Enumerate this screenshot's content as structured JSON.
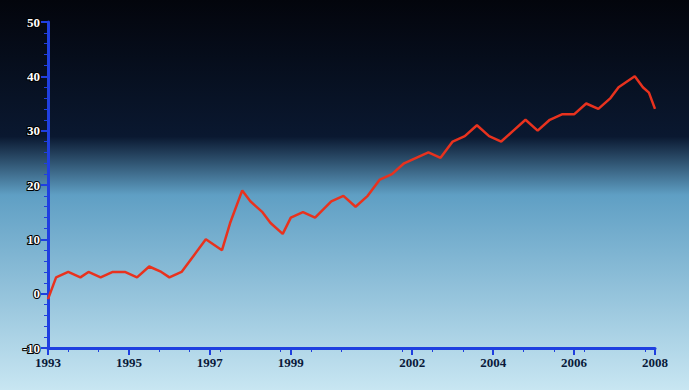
{
  "chart_data": {
    "type": "line",
    "x": [
      1993.0,
      1993.2,
      1993.5,
      1993.8,
      1994.0,
      1994.3,
      1994.6,
      1994.9,
      1995.2,
      1995.5,
      1995.8,
      1996.0,
      1996.3,
      1996.6,
      1996.9,
      1997.1,
      1997.3,
      1997.5,
      1997.8,
      1998.0,
      1998.3,
      1998.5,
      1998.8,
      1999.0,
      1999.3,
      1999.6,
      2000.0,
      2000.3,
      2000.6,
      2000.9,
      2001.2,
      2001.5,
      2001.8,
      2002.1,
      2002.4,
      2002.7,
      2003.0,
      2003.3,
      2003.6,
      2003.9,
      2004.2,
      2004.5,
      2004.8,
      2005.1,
      2005.4,
      2005.7,
      2006.0,
      2006.3,
      2006.6,
      2006.9,
      2007.1,
      2007.3,
      2007.5,
      2007.7,
      2007.85,
      2008.0
    ],
    "values": [
      -1,
      3,
      4,
      3,
      4,
      3,
      4,
      4,
      3,
      5,
      4,
      3,
      4,
      7,
      10,
      9,
      8,
      13,
      19,
      17,
      15,
      13,
      11,
      14,
      15,
      14,
      17,
      18,
      16,
      18,
      21,
      22,
      24,
      25,
      26,
      25,
      28,
      29,
      31,
      29,
      28,
      30,
      32,
      30,
      32,
      33,
      33,
      35,
      34,
      36,
      38,
      39,
      40,
      38,
      37,
      34
    ],
    "color": "#e8321e",
    "xlim": [
      1993,
      2008
    ],
    "xticks": [
      1993,
      1995,
      1997,
      1999,
      2002,
      2004,
      2006,
      2008
    ],
    "ylim": [
      -10,
      50
    ],
    "yticks": [
      -10,
      0,
      10,
      20,
      30,
      40,
      50
    ],
    "grid": false
  }
}
